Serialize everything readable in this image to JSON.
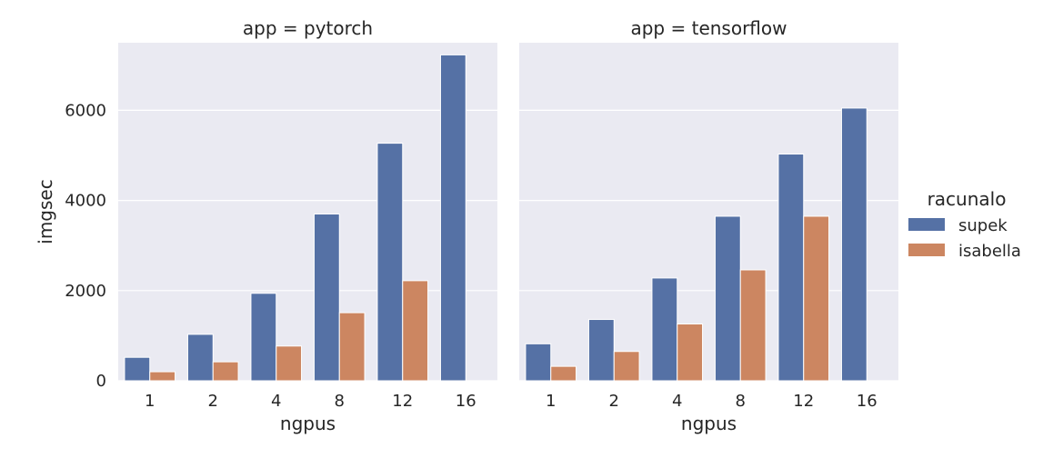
{
  "chart_data": {
    "type": "bar",
    "xlabel": "ngpus",
    "ylabel": "imgsec",
    "ylim": [
      0,
      7500
    ],
    "yticks": [
      0,
      2000,
      4000,
      6000
    ],
    "grid": true,
    "categories": [
      "1",
      "2",
      "4",
      "8",
      "12",
      "16"
    ],
    "legend": {
      "title": "racunalo",
      "placement": "right"
    },
    "series_colors": {
      "supek": "#5571a5",
      "isabella": "#cc8661"
    },
    "facets": [
      {
        "title": "app = pytorch",
        "series": [
          {
            "name": "supek",
            "values": [
              520,
              1030,
              1940,
              3700,
              5270,
              7230
            ]
          },
          {
            "name": "isabella",
            "values": [
              200,
              420,
              770,
              1510,
              2220,
              null
            ]
          }
        ]
      },
      {
        "title": "app = tensorflow",
        "series": [
          {
            "name": "supek",
            "values": [
              820,
              1360,
              2280,
              3650,
              5030,
              6050
            ]
          },
          {
            "name": "isabella",
            "values": [
              320,
              650,
              1260,
              2460,
              3650,
              null
            ]
          }
        ]
      }
    ]
  }
}
